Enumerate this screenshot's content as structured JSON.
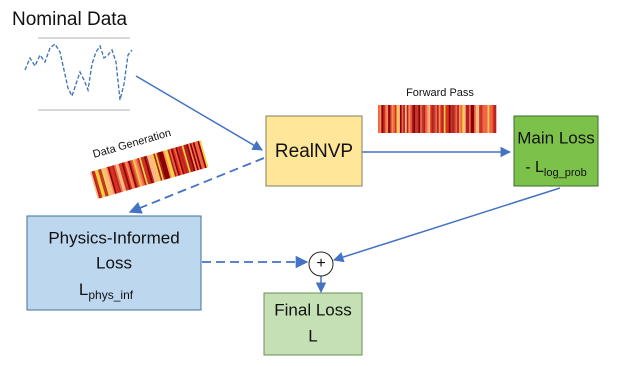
{
  "nodes": {
    "nominal_data": {
      "label": "Nominal Data"
    },
    "realnvp": {
      "label": "RealNVP"
    },
    "main_loss": {
      "label": "Main Loss",
      "term": "- L",
      "term_subscript": "log_prob"
    },
    "physics_loss": {
      "lines": [
        "Physics-Informed",
        "Loss"
      ],
      "term": "L",
      "term_subscript": "phys_inf"
    },
    "sum": {
      "label": "+"
    },
    "final_loss": {
      "label": "Final Loss",
      "term": "L"
    }
  },
  "edges": {
    "forward_pass": "Forward Pass",
    "data_generation": "Data Generation"
  }
}
